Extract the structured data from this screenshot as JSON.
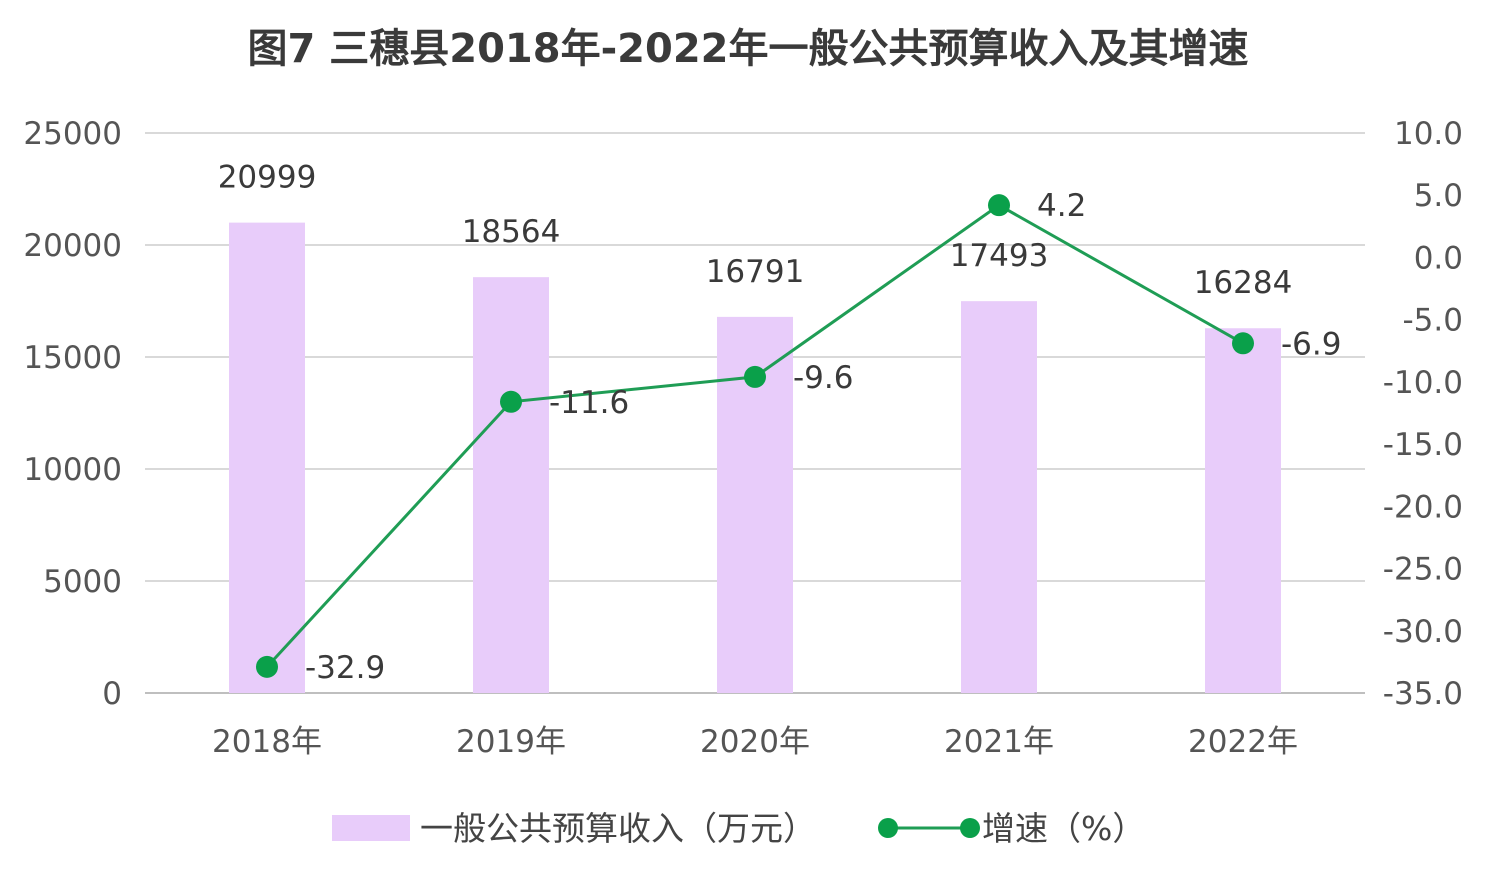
{
  "chart_data": {
    "type": "bar",
    "title": "图7  三穗县2018年-2022年一般公共预算收入及其增速",
    "categories": [
      "2018年",
      "2019年",
      "2020年",
      "2021年",
      "2022年"
    ],
    "series": [
      {
        "name": "一般公共预算收入（万元）",
        "type": "bar",
        "axis": "left",
        "color": "#e8ccfa",
        "values": [
          20999,
          18564,
          16791,
          17493,
          16284
        ],
        "labels": [
          "20999",
          "18564",
          "16791",
          "17493",
          "16284"
        ]
      },
      {
        "name": "增速（%）",
        "type": "line",
        "axis": "right",
        "color": "#1f9d55",
        "marker_color": "#0aa04a",
        "values": [
          -32.9,
          -11.6,
          -9.6,
          4.2,
          -6.9
        ],
        "labels": [
          "-32.9",
          "-11.6",
          "-9.6",
          "4.2",
          "-6.9"
        ]
      }
    ],
    "left_axis": {
      "ylim": [
        0,
        25000
      ],
      "ticks": [
        0,
        5000,
        10000,
        15000,
        20000,
        25000
      ],
      "tick_labels": [
        "0",
        "5000",
        "10000",
        "15000",
        "20000",
        "25000"
      ]
    },
    "right_axis": {
      "ylim": [
        -35,
        10
      ],
      "ticks": [
        -35,
        -30,
        -25,
        -20,
        -15,
        -10,
        -5,
        0,
        5,
        10
      ],
      "tick_labels": [
        "-35.0",
        "-30.0",
        "-25.0",
        "-20.0",
        "-15.0",
        "-10.0",
        "-5.0",
        "0.0",
        "5.0",
        "10.0"
      ]
    },
    "grid": true,
    "legend": {
      "position": "bottom",
      "bar_label": "一般公共预算收入（万元）",
      "line_label": "增速（%）"
    },
    "colors": {
      "grid": "#d9d9d9",
      "axis": "#bfbfbf"
    }
  }
}
